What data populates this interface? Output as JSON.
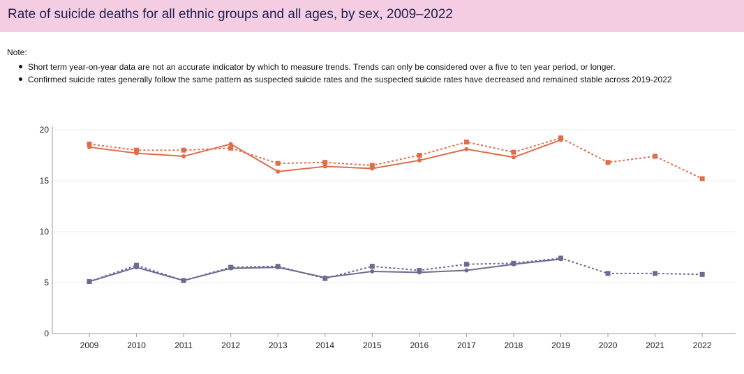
{
  "title": "Rate of suicide deaths for all ethnic groups and all ages, by sex, 2009–2022",
  "note": {
    "label": "Note:",
    "items": [
      "Short term year-on-year data are not an accurate indicator by which to measure trends. Trends can only be considered over a five to ten year period, or longer.",
      "Confirmed suicide rates generally follow the same pattern as suspected suicide rates and the suspected suicide rates have decreased and remained stable across 2019-2022"
    ]
  },
  "chart_data": {
    "type": "line",
    "title": "",
    "xlabel": "",
    "ylabel": "",
    "x": [
      "2009",
      "2010",
      "2011",
      "2012",
      "2013",
      "2014",
      "2015",
      "2016",
      "2017",
      "2018",
      "2019",
      "2020",
      "2021",
      "2022"
    ],
    "ylim": [
      0,
      20
    ],
    "yticks": [
      0,
      5,
      10,
      15,
      20
    ],
    "grid": true,
    "legend": "none",
    "colors": {
      "orange": "#e06c4b",
      "purple": "#6b6b92"
    },
    "series": [
      {
        "color": "orange",
        "style": "solid",
        "marker": "circle",
        "values": [
          18.3,
          17.7,
          17.4,
          18.6,
          15.9,
          16.4,
          16.2,
          17.0,
          18.1,
          17.3,
          19.0,
          null,
          null,
          null
        ]
      },
      {
        "color": "orange",
        "style": "dotted",
        "marker": "square",
        "values": [
          18.6,
          18.0,
          18.0,
          18.2,
          16.7,
          16.8,
          16.5,
          17.5,
          18.8,
          17.8,
          19.2,
          16.8,
          17.4,
          15.2
        ]
      },
      {
        "color": "purple",
        "style": "solid",
        "marker": "circle",
        "values": [
          5.1,
          6.5,
          5.2,
          6.4,
          6.5,
          5.5,
          6.1,
          6.0,
          6.2,
          6.8,
          7.3,
          null,
          null,
          null
        ]
      },
      {
        "color": "purple",
        "style": "dotted",
        "marker": "square",
        "values": [
          5.1,
          6.7,
          5.2,
          6.5,
          6.6,
          5.4,
          6.6,
          6.2,
          6.8,
          6.9,
          7.4,
          5.9,
          5.9,
          5.8
        ]
      }
    ]
  }
}
